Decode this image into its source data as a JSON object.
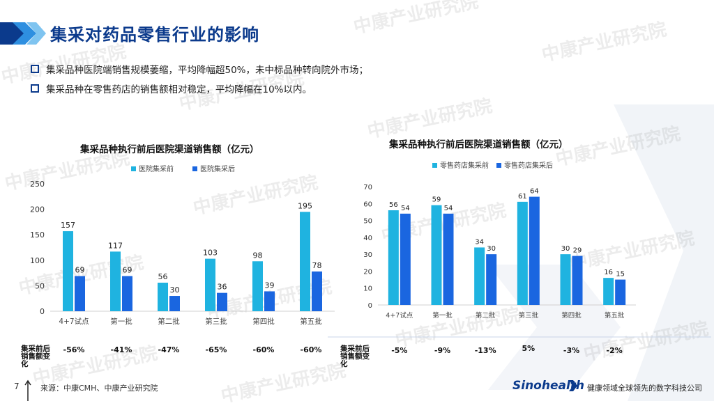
{
  "page": {
    "title": "集采对药品零售行业的影响",
    "bullets": [
      "集采品种医院端销售规模萎缩，平均降幅超50%，未中标品种转向院外市场；",
      "集采品种在零售药店的销售额相对稳定，平均降幅在10%以内。"
    ],
    "watermark": "中康产业研究院",
    "change_label": "集采前后销售额变化",
    "footer": {
      "page_number": "7",
      "source": "来源：中康CMH、中康产业研究院",
      "brand": "Sinohealth",
      "tagline": "健康领域全球领先的数字科技公司"
    }
  },
  "colors": {
    "light_bar": "#1fb3e0",
    "dark_bar": "#1a66e0",
    "title_blue": "#0b3a8c"
  },
  "chart_data": [
    {
      "type": "bar",
      "title": "集采品种执行前后医院渠道销售额（亿元）",
      "categories": [
        "4+7试点",
        "第一批",
        "第二批",
        "第三批",
        "第四批",
        "第五批"
      ],
      "series": [
        {
          "name": "医院集采前",
          "values": [
            157,
            117,
            56,
            103,
            98,
            195
          ]
        },
        {
          "name": "医院集采后",
          "values": [
            69,
            69,
            30,
            36,
            39,
            78
          ]
        }
      ],
      "ylim": [
        0,
        250
      ],
      "yticks": [
        0,
        50,
        100,
        150,
        200,
        250
      ],
      "legend": "top",
      "grid": false,
      "changes": [
        "-56%",
        "-41%",
        "-47%",
        "-65%",
        "-60%",
        "-60%"
      ]
    },
    {
      "type": "bar",
      "title": "集采品种执行前后医院渠道销售额（亿元）",
      "categories": [
        "4+7试点",
        "第一批",
        "第二批",
        "第三批",
        "第四批",
        "第五批"
      ],
      "series": [
        {
          "name": "零售药店集采前",
          "values": [
            56,
            59,
            34,
            61,
            30,
            16
          ]
        },
        {
          "name": "零售药店集采后",
          "values": [
            54,
            54,
            30,
            64,
            29,
            15
          ]
        }
      ],
      "ylim": [
        0,
        70
      ],
      "yticks": [
        0,
        10,
        20,
        30,
        40,
        50,
        60,
        70
      ],
      "legend": "top",
      "grid": false,
      "changes": [
        "-5%",
        "-9%",
        "-13%",
        "5%",
        "-3%",
        "-2%"
      ]
    }
  ]
}
